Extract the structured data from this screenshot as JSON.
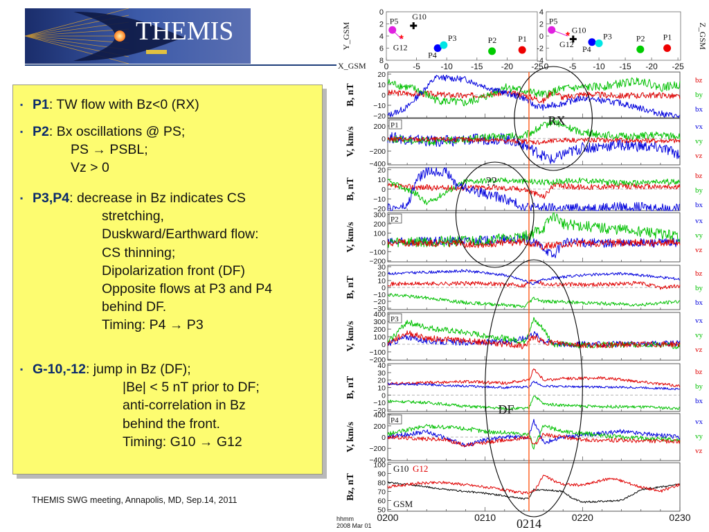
{
  "header": {
    "logo_text": "THEMIS"
  },
  "bullets": [
    {
      "head": "P1",
      "lines": [
        ": TW flow with Bz<0 (RX)"
      ]
    },
    {
      "head": "P2",
      "lines": [
        ": Bx oscillations @ PS;",
        "PS → PSBL;",
        "Vz > 0"
      ]
    },
    {
      "head": "P3,P4",
      "lines": [
        ": decrease in Bz indicates CS",
        "stretching,",
        "Duskward/Earthward flow:",
        "CS thinning;",
        "Dipolarization front (DF)",
        "Opposite flows at P3 and P4",
        "behind DF.",
        "Timing: P4 → P3"
      ]
    },
    {
      "head": "G-10,-12",
      "lines": [
        ": jump in Bz (DF);",
        "|Be| < 5 nT prior to DF;",
        "anti-correlation in Bz",
        "behind the front.",
        "Timing: G10 → G12"
      ]
    }
  ],
  "footer": "THEMIS SWG meeting, Annapolis, MD, Sep.14, 2011",
  "colors": {
    "bx": "#0000dd",
    "by": "#00c000",
    "bz": "#e00000",
    "vline": "#ff5a1a",
    "box_bg": "#fdfc70",
    "accent": "#0b2a6b"
  },
  "chart_data": {
    "type": "line",
    "orbit_panels": [
      {
        "ylabel": "Y_GSM",
        "yticks": [
          "0",
          "2",
          "4",
          "6",
          "8"
        ],
        "ylim": [
          0,
          8
        ],
        "points": [
          {
            "name": "P5",
            "x": -1.0,
            "y": 3.0,
            "color": "#e020e0",
            "marker": "dot"
          },
          {
            "name": "G10",
            "x": -4.5,
            "y": 2.3,
            "color": "#000000",
            "marker": "plus"
          },
          {
            "name": "G12",
            "x": -2.5,
            "y": 4.5,
            "color": "#ff0000",
            "marker": "star"
          },
          {
            "name": "P4",
            "x": -8.5,
            "y": 6.0,
            "color": "#0000ff",
            "marker": "dot"
          },
          {
            "name": "P3",
            "x": -9.5,
            "y": 5.5,
            "color": "#00e5e5",
            "marker": "dot"
          },
          {
            "name": "P2",
            "x": -17.5,
            "y": 6.5,
            "color": "#00cc00",
            "marker": "dot"
          },
          {
            "name": "P1",
            "x": -22.5,
            "y": 6.3,
            "color": "#ee0000",
            "marker": "dot"
          }
        ]
      },
      {
        "ylabel": "Z_GSM",
        "yticks": [
          "4",
          "2",
          "0",
          "-2",
          "-4"
        ],
        "ylim": [
          -4,
          4
        ],
        "points": [
          {
            "name": "P5",
            "x": -1.0,
            "y": 1.0,
            "color": "#e020e0",
            "marker": "dot"
          },
          {
            "name": "G12",
            "x": -4.0,
            "y": 0.0,
            "color": "#ff0000",
            "marker": "star"
          },
          {
            "name": "G10",
            "x": -5.0,
            "y": -0.5,
            "color": "#000000",
            "marker": "plus"
          },
          {
            "name": "P4",
            "x": -8.5,
            "y": -1.0,
            "color": "#0000ff",
            "marker": "dot"
          },
          {
            "name": "P3",
            "x": -9.8,
            "y": -1.2,
            "color": "#00e5e5",
            "marker": "dot"
          },
          {
            "name": "P2",
            "x": -17.5,
            "y": -2.2,
            "color": "#00cc00",
            "marker": "dot"
          },
          {
            "name": "P1",
            "x": -22.5,
            "y": -2.0,
            "color": "#ee0000",
            "marker": "dot"
          }
        ]
      }
    ],
    "orbit_xlabel": "X_GSM",
    "orbit_xticks": [
      "0",
      "-5",
      "-10",
      "-15",
      "-20",
      "-25"
    ],
    "orbit_xlim": [
      0,
      -25
    ],
    "time_axis": {
      "label_line1": "hhmm",
      "label_line2": "2008 Mar 01",
      "ticks": [
        "0200",
        "0210",
        "0220",
        "0230"
      ],
      "tick_minutes": [
        0,
        10,
        20,
        30
      ],
      "xlim": [
        0,
        30
      ]
    },
    "marker_line_minute": 14.5,
    "marker_line_label": "0214",
    "panels": [
      {
        "ylabel": "B, nT",
        "probe": "",
        "yticks": [
          "20",
          "10",
          "0",
          "−10",
          "−20"
        ],
        "ylim": [
          -22,
          22
        ],
        "series": [
          {
            "name": "bz",
            "color": "#e00000",
            "shape": "bz_p1"
          },
          {
            "name": "by",
            "color": "#00c000",
            "shape": "by_p1"
          },
          {
            "name": "bx",
            "color": "#0000dd",
            "shape": "bx_p1"
          }
        ]
      },
      {
        "ylabel": "V, km/s",
        "probe": "P1",
        "yticks": [
          "200",
          "0",
          "−200",
          "−400"
        ],
        "ylim": [
          -420,
          320
        ],
        "series": [
          {
            "name": "vx",
            "color": "#0000dd",
            "shape": "vx_p1"
          },
          {
            "name": "vy",
            "color": "#00c000",
            "shape": "vy_p1"
          },
          {
            "name": "vz",
            "color": "#e00000",
            "shape": "vz_p1"
          }
        ]
      },
      {
        "ylabel": "B, nT",
        "probe": "",
        "yticks": [
          "20",
          "10",
          "0",
          "−10",
          "−20"
        ],
        "ylim": [
          -22,
          22
        ],
        "series": [
          {
            "name": "bz",
            "color": "#e00000",
            "shape": "bz_p2"
          },
          {
            "name": "by",
            "color": "#00c000",
            "shape": "by_p2"
          },
          {
            "name": "bx",
            "color": "#0000dd",
            "shape": "bx_p2"
          }
        ]
      },
      {
        "ylabel": "V, km/s",
        "probe": "P2",
        "yticks": [
          "300",
          "200",
          "100",
          "0",
          "−100",
          "−200"
        ],
        "ylim": [
          -210,
          320
        ],
        "series": [
          {
            "name": "vx",
            "color": "#0000dd",
            "shape": "vx_p2"
          },
          {
            "name": "vy",
            "color": "#00c000",
            "shape": "vy_p2"
          },
          {
            "name": "vz",
            "color": "#e00000",
            "shape": "vz_p2"
          }
        ]
      },
      {
        "ylabel": "B, nT",
        "probe": "",
        "yticks": [
          "30",
          "20",
          "10",
          "0",
          "−10",
          "−20",
          "−30"
        ],
        "ylim": [
          -32,
          32
        ],
        "series": [
          {
            "name": "bz",
            "color": "#e00000",
            "shape": "bz_p3"
          },
          {
            "name": "by",
            "color": "#00c000",
            "shape": "by_p3"
          },
          {
            "name": "bx",
            "color": "#0000dd",
            "shape": "bx_p3"
          }
        ]
      },
      {
        "ylabel": "V, km/s",
        "probe": "P3",
        "yticks": [
          "400",
          "300",
          "200",
          "100",
          "0",
          "−100",
          "−200"
        ],
        "ylim": [
          -210,
          420
        ],
        "series": [
          {
            "name": "vx",
            "color": "#0000dd",
            "shape": "vx_p3"
          },
          {
            "name": "vy",
            "color": "#00c000",
            "shape": "vy_p3"
          },
          {
            "name": "vz",
            "color": "#e00000",
            "shape": "vz_p3"
          }
        ]
      },
      {
        "ylabel": "B, nT",
        "probe": "",
        "yticks": [
          "40",
          "30",
          "20",
          "10",
          "0",
          "−10",
          "−20"
        ],
        "ylim": [
          -22,
          42
        ],
        "series": [
          {
            "name": "bz",
            "color": "#e00000",
            "shape": "bz_p4"
          },
          {
            "name": "by",
            "color": "#00c000",
            "shape": "by_p4"
          },
          {
            "name": "bx",
            "color": "#0000dd",
            "shape": "bx_p4"
          }
        ]
      },
      {
        "ylabel": "V, km/s",
        "probe": "P4",
        "yticks": [
          "400",
          "200",
          "0",
          "−200",
          "−400"
        ],
        "ylim": [
          -420,
          420
        ],
        "series": [
          {
            "name": "vx",
            "color": "#0000dd",
            "shape": "vx_p4"
          },
          {
            "name": "vy",
            "color": "#00c000",
            "shape": "vy_p4"
          },
          {
            "name": "vz",
            "color": "#e00000",
            "shape": "vz_p4"
          }
        ]
      },
      {
        "ylabel": "Bz, nT",
        "probe": "G10",
        "probe2": "G12",
        "coord": "GSM",
        "yticks": [
          "100",
          "90",
          "80",
          "70",
          "60",
          "50"
        ],
        "ylim": [
          48,
          102
        ],
        "series": [
          {
            "name": "G10",
            "color": "#000000",
            "shape": "g10"
          },
          {
            "name": "G12",
            "color": "#e00000",
            "shape": "g12"
          }
        ]
      }
    ],
    "annotations": [
      {
        "text": "RX",
        "panels": [
          0,
          1
        ],
        "t_center": 17.0,
        "t_half": 4.0
      },
      {
        "text": "??",
        "panels": [
          2,
          3
        ],
        "t_center": 11.0,
        "t_half": 4.0
      },
      {
        "text": "DF",
        "panels": [
          4,
          8
        ],
        "t_center": 15.0,
        "t_half": 5.0
      }
    ]
  }
}
